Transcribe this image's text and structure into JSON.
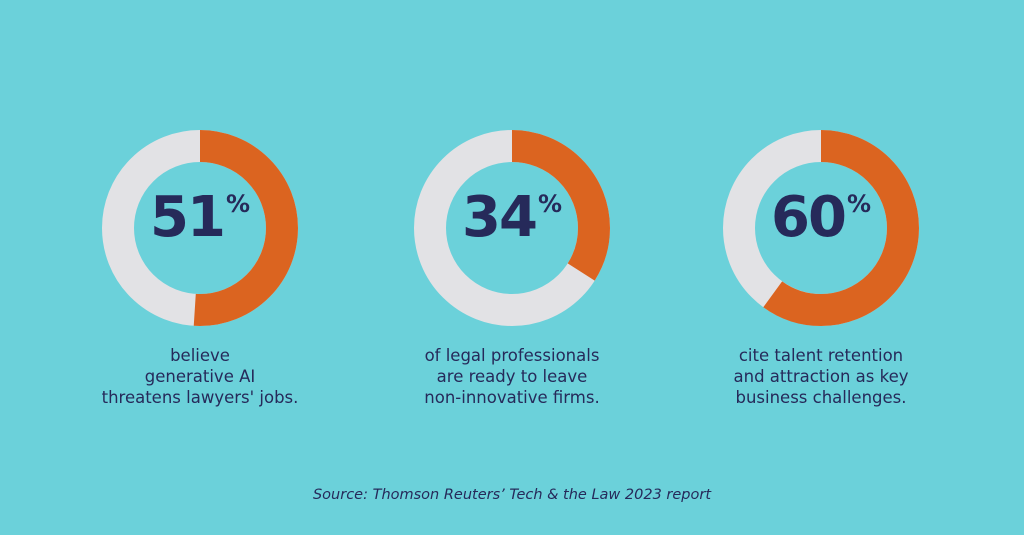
{
  "colors": {
    "background": "#6bd1da",
    "highlight": "#db6420",
    "track": "#e2e2e5",
    "text": "#262a5a"
  },
  "chart_data": [
    {
      "type": "pie",
      "style": "donut",
      "value": 51,
      "number": "51",
      "unit": "%",
      "caption": [
        "believe",
        "generative AI",
        "threatens lawyers' jobs."
      ]
    },
    {
      "type": "pie",
      "style": "donut",
      "value": 34,
      "number": "34",
      "unit": "%",
      "caption": [
        "of legal professionals",
        "are ready to leave",
        "non-innovative firms."
      ]
    },
    {
      "type": "pie",
      "style": "donut",
      "value": 60,
      "number": "60",
      "unit": "%",
      "caption": [
        "cite talent retention",
        "and attraction as key",
        "business challenges."
      ]
    }
  ],
  "source": "Source: Thomson Reuters’ Tech & the Law 2023 report"
}
